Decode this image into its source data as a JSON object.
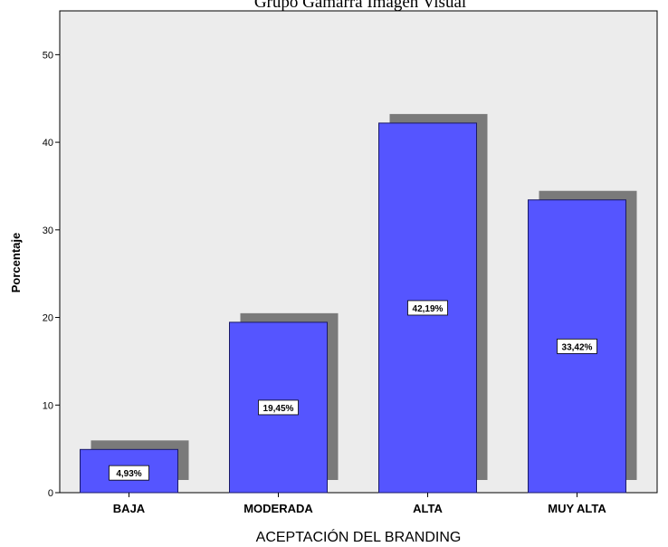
{
  "chart_data": {
    "type": "bar",
    "title": "Grupo Gamarra Imagen Visual",
    "xlabel": "ACEPTACIÓN DEL BRANDING",
    "ylabel": "Porcentaje",
    "categories": [
      "BAJA",
      "MODERADA",
      "ALTA",
      "MUY ALTA"
    ],
    "values": [
      4.93,
      19.45,
      42.19,
      33.42
    ],
    "data_labels": [
      "4,93%",
      "19,45%",
      "42,19%",
      "33,42%"
    ],
    "ylim": [
      0,
      55
    ],
    "yticks": [
      0,
      10,
      20,
      30,
      40,
      50
    ],
    "grid": false,
    "legend": "none",
    "colors": {
      "bar": "#5555ff",
      "bar_stroke": "#1a1a66",
      "shadow": "#7a7a7a",
      "plot_background": "#ececec",
      "label_box": "#ffffff"
    }
  }
}
